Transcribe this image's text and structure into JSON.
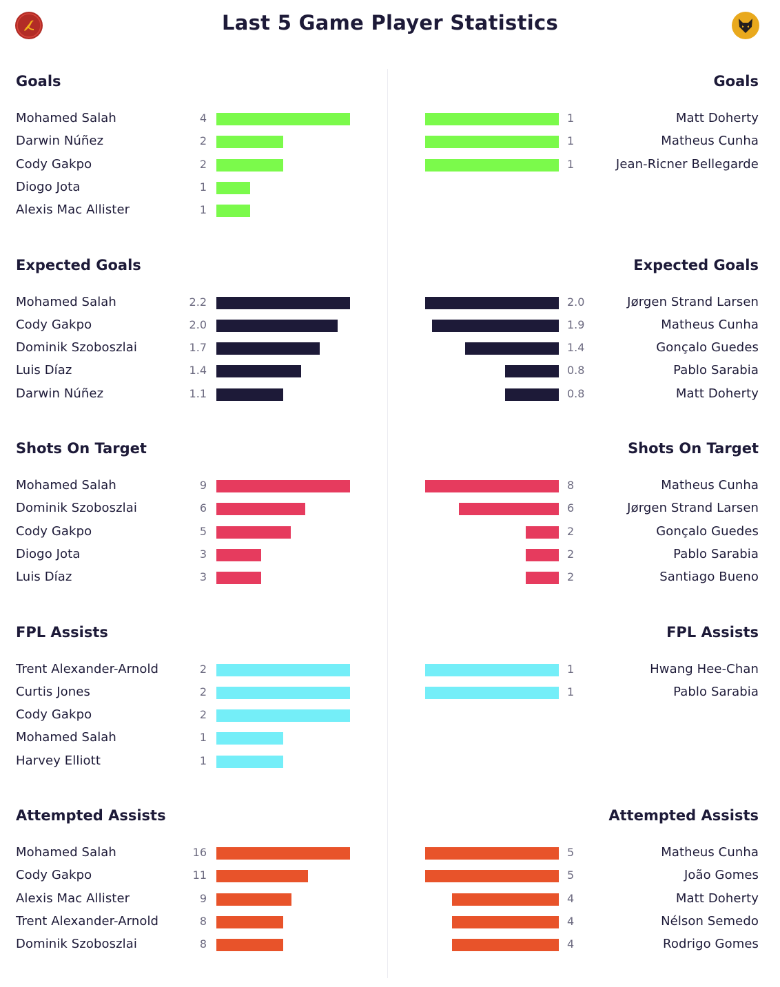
{
  "title": "Last 5 Game Player Statistics",
  "home_crest": {
    "icon": "liverpool-crest-icon",
    "color": "#b22c26"
  },
  "away_crest": {
    "icon": "wolves-crest-icon",
    "color": "#e9a91d"
  },
  "chart_data": [
    {
      "type": "bar",
      "title": "Goals",
      "color": "#7bfa4b",
      "home": [
        {
          "name": "Mohamed Salah",
          "value": "4"
        },
        {
          "name": "Darwin Núñez",
          "value": "2"
        },
        {
          "name": "Cody Gakpo",
          "value": "2"
        },
        {
          "name": "Diogo Jota",
          "value": "1"
        },
        {
          "name": "Alexis Mac Allister",
          "value": "1"
        }
      ],
      "away": [
        {
          "name": "Matt Doherty",
          "value": "1"
        },
        {
          "name": "Matheus Cunha",
          "value": "1"
        },
        {
          "name": "Jean-Ricner Bellegarde",
          "value": "1"
        }
      ]
    },
    {
      "type": "bar",
      "title": "Expected Goals",
      "color": "#1d1a38",
      "home": [
        {
          "name": "Mohamed Salah",
          "value": "2.2"
        },
        {
          "name": "Cody Gakpo",
          "value": "2.0"
        },
        {
          "name": "Dominik Szoboszlai",
          "value": "1.7"
        },
        {
          "name": "Luis Díaz",
          "value": "1.4"
        },
        {
          "name": "Darwin Núñez",
          "value": "1.1"
        }
      ],
      "away": [
        {
          "name": "Jørgen Strand Larsen",
          "value": "2.0"
        },
        {
          "name": "Matheus Cunha",
          "value": "1.9"
        },
        {
          "name": "Gonçalo Guedes",
          "value": "1.4"
        },
        {
          "name": "Pablo Sarabia",
          "value": "0.8"
        },
        {
          "name": "Matt Doherty",
          "value": "0.8"
        }
      ]
    },
    {
      "type": "bar",
      "title": "Shots On Target",
      "color": "#e63b5e",
      "home": [
        {
          "name": "Mohamed Salah",
          "value": "9"
        },
        {
          "name": "Dominik Szoboszlai",
          "value": "6"
        },
        {
          "name": "Cody Gakpo",
          "value": "5"
        },
        {
          "name": "Diogo Jota",
          "value": "3"
        },
        {
          "name": "Luis Díaz",
          "value": "3"
        }
      ],
      "away": [
        {
          "name": "Matheus Cunha",
          "value": "8"
        },
        {
          "name": "Jørgen Strand Larsen",
          "value": "6"
        },
        {
          "name": "Gonçalo Guedes",
          "value": "2"
        },
        {
          "name": "Pablo Sarabia",
          "value": "2"
        },
        {
          "name": "Santiago Bueno",
          "value": "2"
        }
      ]
    },
    {
      "type": "bar",
      "title": "FPL Assists",
      "color": "#74eef8",
      "home": [
        {
          "name": "Trent Alexander-Arnold",
          "value": "2"
        },
        {
          "name": "Curtis Jones",
          "value": "2"
        },
        {
          "name": "Cody Gakpo",
          "value": "2"
        },
        {
          "name": "Mohamed Salah",
          "value": "1"
        },
        {
          "name": "Harvey Elliott",
          "value": "1"
        }
      ],
      "away": [
        {
          "name": "Hwang Hee-Chan",
          "value": "1"
        },
        {
          "name": "Pablo Sarabia",
          "value": "1"
        }
      ]
    },
    {
      "type": "bar",
      "title": "Attempted Assists",
      "color": "#e8532a",
      "home": [
        {
          "name": "Mohamed Salah",
          "value": "16"
        },
        {
          "name": "Cody Gakpo",
          "value": "11"
        },
        {
          "name": "Alexis Mac Allister",
          "value": "9"
        },
        {
          "name": "Trent Alexander-Arnold",
          "value": "8"
        },
        {
          "name": "Dominik Szoboszlai",
          "value": "8"
        }
      ],
      "away": [
        {
          "name": "Matheus Cunha",
          "value": "5"
        },
        {
          "name": "João Gomes",
          "value": "5"
        },
        {
          "name": "Matt Doherty",
          "value": "4"
        },
        {
          "name": "Nélson Semedo",
          "value": "4"
        },
        {
          "name": "Rodrigo Gomes",
          "value": "4"
        }
      ]
    }
  ]
}
